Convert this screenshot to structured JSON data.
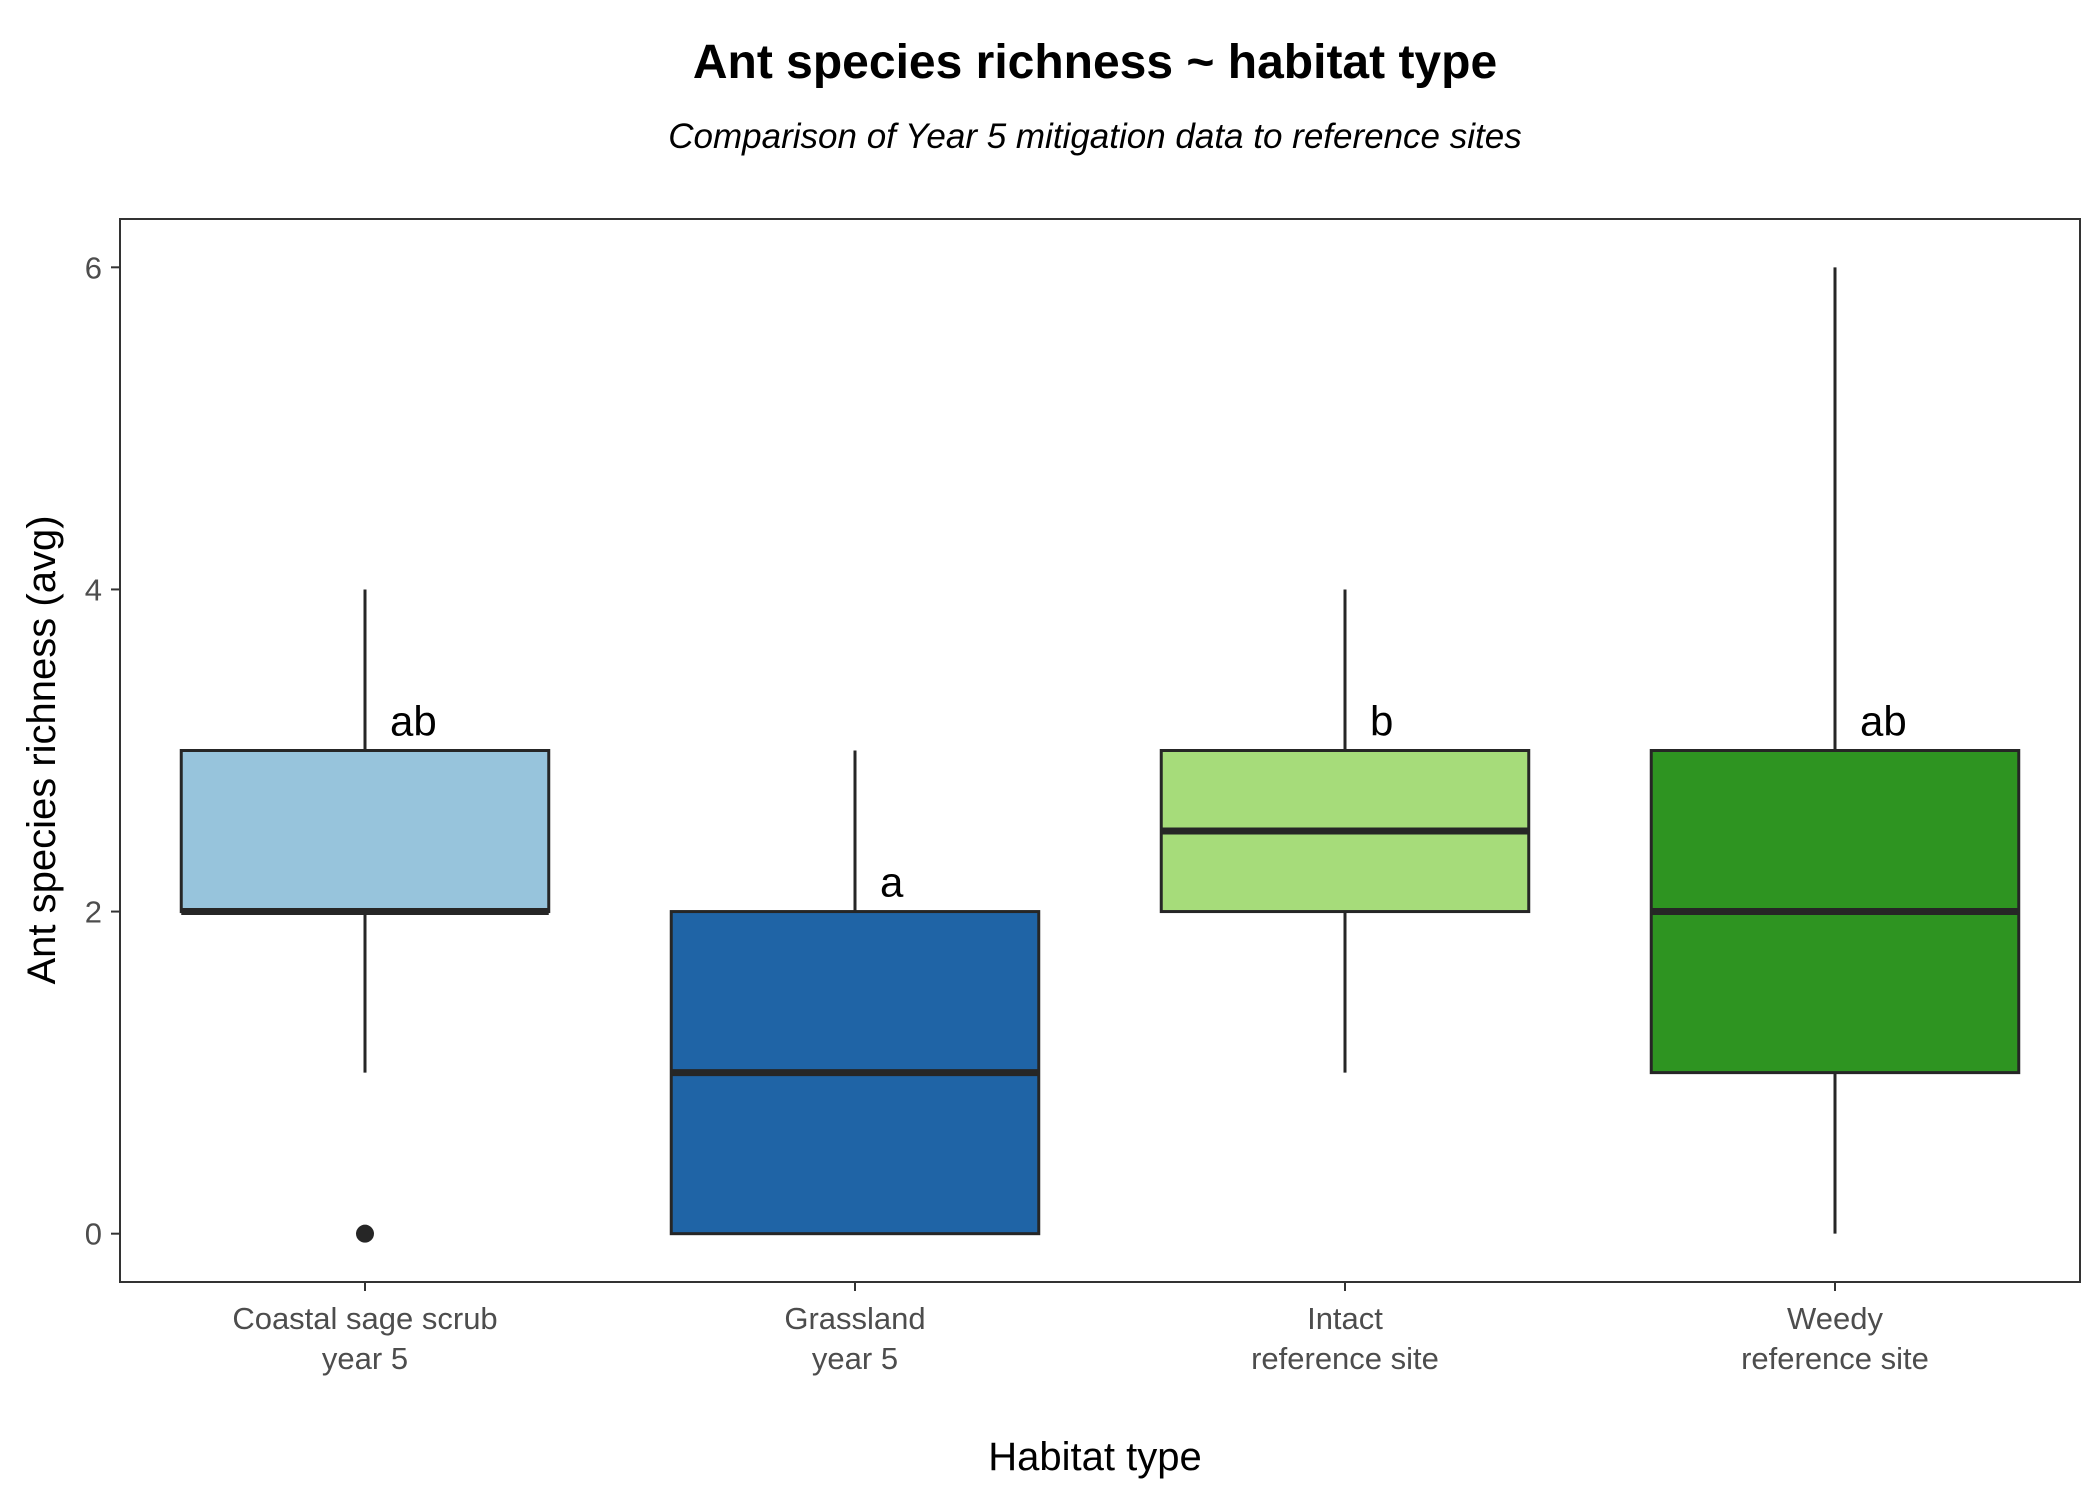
{
  "chart_data": {
    "type": "box",
    "title": "Ant species richness ~ habitat type",
    "subtitle": "Comparison of Year 5 mitigation data to reference sites",
    "xlabel": "Habitat type",
    "ylabel": "Ant species richness (avg)",
    "ylim": [
      -0.3,
      6.3
    ],
    "y_ticks": [
      0,
      2,
      4,
      6
    ],
    "grid": false,
    "legend": "none",
    "categories": [
      [
        "Coastal sage scrub",
        "year 5"
      ],
      [
        "Grassland",
        "year 5"
      ],
      [
        "Intact",
        "reference site"
      ],
      [
        "Weedy",
        "reference site"
      ]
    ],
    "boxes": [
      {
        "lower_whisker": 1,
        "q1": 2,
        "median": 2,
        "q3": 3,
        "upper_whisker": 4,
        "outliers": [
          0
        ],
        "fill": "#97c4dc",
        "label": "ab"
      },
      {
        "lower_whisker": 0,
        "q1": 0,
        "median": 1,
        "q3": 2,
        "upper_whisker": 3,
        "outliers": [],
        "fill": "#1f64a6",
        "label": "a"
      },
      {
        "lower_whisker": 1,
        "q1": 2,
        "median": 2.5,
        "q3": 3,
        "upper_whisker": 4,
        "outliers": [],
        "fill": "#a6dc7a",
        "label": "b"
      },
      {
        "lower_whisker": 0,
        "q1": 1,
        "median": 2,
        "q3": 3,
        "upper_whisker": 6,
        "outliers": [],
        "fill": "#2e9421",
        "label": "ab"
      }
    ]
  },
  "colors": {
    "box_outline": "#262626",
    "panel_border": "#333333",
    "tick_color": "#333333"
  }
}
